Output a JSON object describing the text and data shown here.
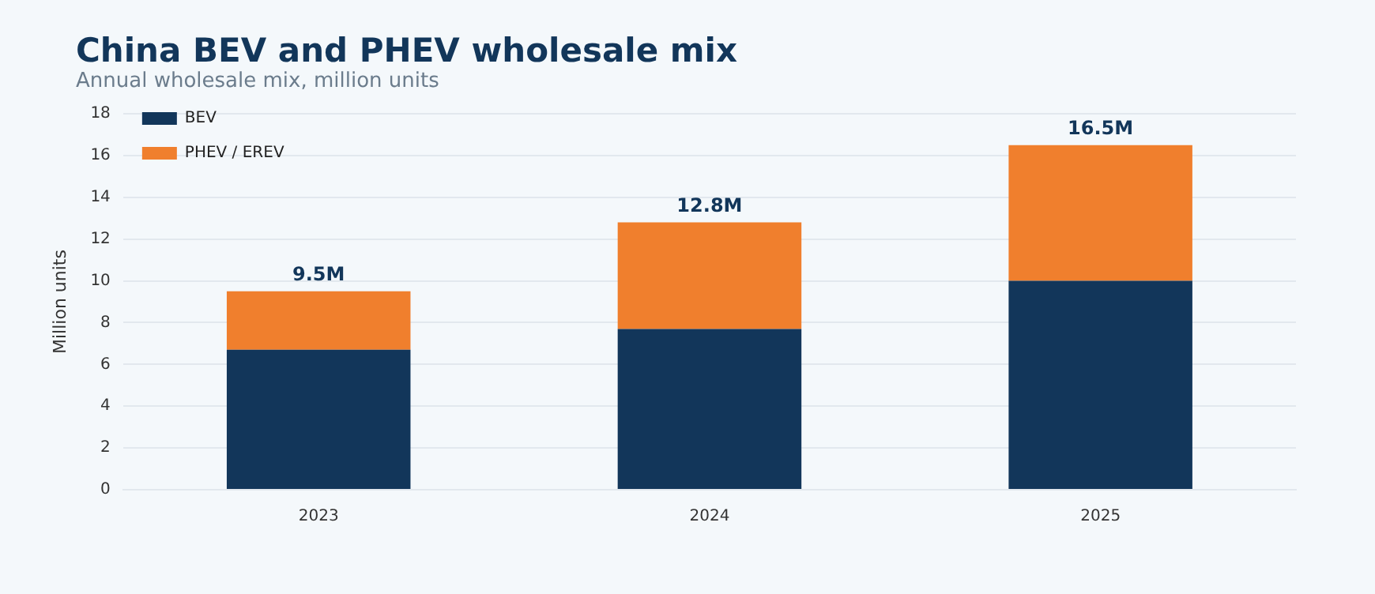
{
  "chart_data": {
    "type": "bar",
    "title": "China BEV and PHEV wholesale mix",
    "subtitle": "Annual wholesale mix, million units",
    "ylabel": "Million units",
    "categories": [
      "2023",
      "2024",
      "2025"
    ],
    "series": [
      {
        "name": "BEV",
        "color": "#12365a",
        "values": [
          6.7,
          7.7,
          10.0
        ]
      },
      {
        "name": "PHEV / EREV",
        "color": "#f07f2d",
        "values": [
          2.8,
          5.1,
          6.5
        ]
      }
    ],
    "stacked": true,
    "totals": [
      "9.5M",
      "12.8M",
      "16.5M"
    ],
    "ylim": [
      0,
      18
    ],
    "yticks": [
      0,
      2,
      4,
      6,
      8,
      10,
      12,
      14,
      16,
      18
    ],
    "grid": "y",
    "legend": "top left"
  }
}
